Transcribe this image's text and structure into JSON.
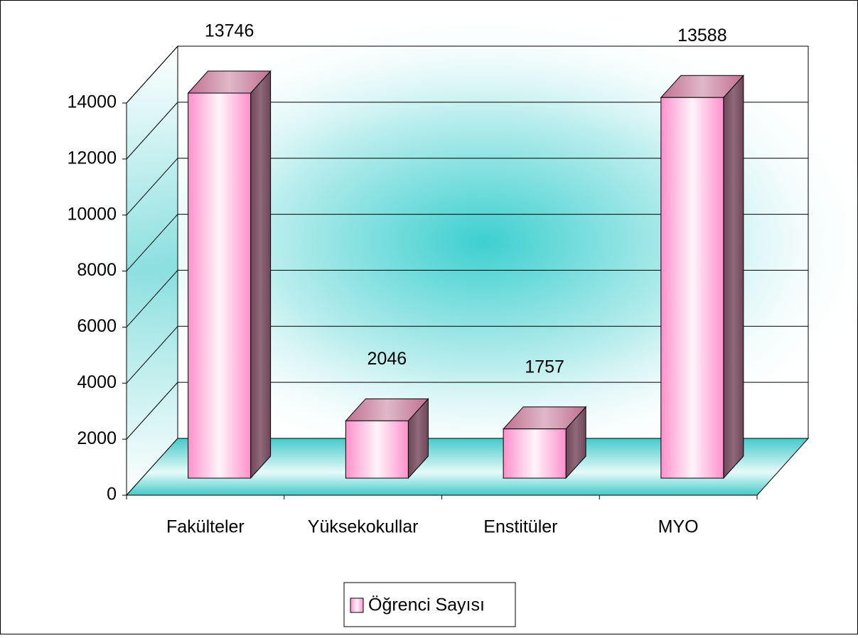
{
  "chart_data": {
    "type": "bar3d",
    "categories": [
      "Fakülteler",
      "Yüksekokullar",
      "Enstitüler",
      "MYO"
    ],
    "series": [
      {
        "name": "Öğrenci Sayısı",
        "color": "#ff99cc",
        "values": [
          13746,
          2046,
          1757,
          13588
        ]
      }
    ],
    "ylim": [
      0,
      14000
    ],
    "yticks": [
      0,
      2000,
      4000,
      6000,
      8000,
      10000,
      12000,
      14000
    ],
    "grid": true,
    "legend": "bottom"
  }
}
